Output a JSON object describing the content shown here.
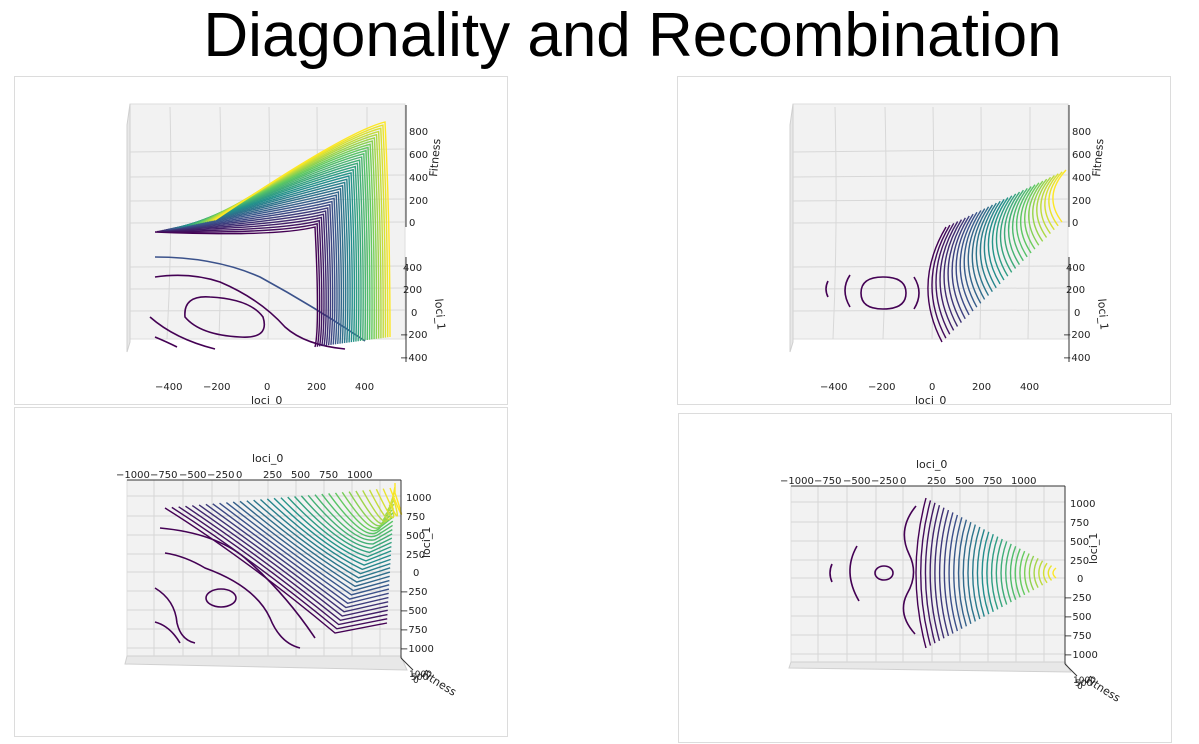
{
  "title": "Diagonality and Recombination",
  "colormap": [
    "#440154",
    "#3b528b",
    "#21918c",
    "#5ec962",
    "#fde725"
  ],
  "chart_data": [
    {
      "type": "contour3d",
      "view": "front",
      "landscape": "diagonal",
      "xlabel": "loci_0",
      "ylabel": "loci_1",
      "zlabel": "Fitness",
      "xticks": [
        "−400",
        "−200",
        "0",
        "200",
        "400"
      ],
      "yticks": [
        "400",
        "200",
        "0",
        "−200",
        "−400"
      ],
      "zticks": [
        "800",
        "600",
        "400",
        "200",
        "0"
      ],
      "xlim": [
        -500,
        500
      ],
      "ylim": [
        -500,
        500
      ],
      "zlim": [
        0,
        900
      ]
    },
    {
      "type": "contour3d",
      "view": "front",
      "landscape": "recombined",
      "xlabel": "loci_0",
      "ylabel": "loci_1",
      "zlabel": "Fitness",
      "xticks": [
        "−400",
        "−200",
        "0",
        "200",
        "400"
      ],
      "yticks": [
        "400",
        "200",
        "0",
        "−200",
        "−400"
      ],
      "zticks": [
        "800",
        "600",
        "400",
        "200",
        "0"
      ],
      "xlim": [
        -500,
        500
      ],
      "ylim": [
        -500,
        500
      ],
      "zlim": [
        0,
        900
      ]
    },
    {
      "type": "contour3d",
      "view": "top",
      "landscape": "diagonal",
      "xlabel": "loci_0",
      "ylabel": "loci_1",
      "zlabel": "Fitness",
      "zlabel_text": "Fitness",
      "xticks": [
        "−1000",
        "−750",
        "−500",
        "−250",
        "0",
        "250",
        "500",
        "750",
        "1000"
      ],
      "yticks": [
        "1000",
        "750",
        "500",
        "250",
        "0",
        "−250",
        "−500",
        "−750",
        "−1000"
      ],
      "ztick_overlap": [
        "1000",
        "500",
        "0"
      ],
      "xlim": [
        -1000,
        1000
      ],
      "ylim": [
        -1000,
        1000
      ]
    },
    {
      "type": "contour3d",
      "view": "top",
      "landscape": "recombined",
      "xlabel": "loci_0",
      "ylabel": "loci_1",
      "zlabel": "Fitness",
      "zlabel_text": "Fitness",
      "xticks": [
        "−1000",
        "−750",
        "−500",
        "−250",
        "0",
        "250",
        "500",
        "750",
        "1000"
      ],
      "yticks": [
        "1000",
        "750",
        "500",
        "250",
        "0",
        "−250",
        "−500",
        "−750",
        "−1000"
      ],
      "ztick_overlap": [
        "1000",
        "500",
        "0"
      ],
      "xlim": [
        -1000,
        1000
      ],
      "ylim": [
        -1000,
        1000
      ]
    }
  ]
}
